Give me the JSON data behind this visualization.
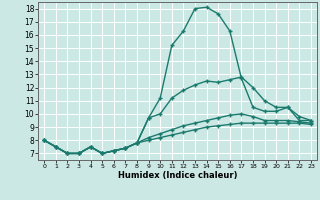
{
  "xlabel": "Humidex (Indice chaleur)",
  "xlim": [
    -0.5,
    23.5
  ],
  "ylim": [
    6.5,
    18.5
  ],
  "xticks": [
    0,
    1,
    2,
    3,
    4,
    5,
    6,
    7,
    8,
    9,
    10,
    11,
    12,
    13,
    14,
    15,
    16,
    17,
    18,
    19,
    20,
    21,
    22,
    23
  ],
  "yticks": [
    7,
    8,
    9,
    10,
    11,
    12,
    13,
    14,
    15,
    16,
    17,
    18
  ],
  "background_color": "#cce8e4",
  "grid_color": "#ffffff",
  "line_color": "#1a7a6e",
  "line_width": 1.0,
  "marker": "+",
  "marker_size": 3.5,
  "marker_lw": 1.0,
  "curves": [
    {
      "x": [
        0,
        1,
        2,
        3,
        4,
        5,
        6,
        7,
        8,
        9,
        10,
        11,
        12,
        13,
        14,
        15,
        16,
        17,
        18,
        19,
        20,
        21,
        22,
        23
      ],
      "y": [
        8.0,
        7.5,
        7.0,
        7.0,
        7.5,
        7.0,
        7.2,
        7.4,
        7.8,
        9.7,
        11.2,
        15.2,
        16.3,
        18.0,
        18.1,
        17.6,
        16.3,
        12.7,
        10.5,
        10.2,
        10.2,
        10.5,
        9.5,
        9.5
      ]
    },
    {
      "x": [
        0,
        1,
        2,
        3,
        4,
        5,
        6,
        7,
        8,
        9,
        10,
        11,
        12,
        13,
        14,
        15,
        16,
        17,
        18,
        19,
        20,
        21,
        22,
        23
      ],
      "y": [
        8.0,
        7.5,
        7.0,
        7.0,
        7.5,
        7.0,
        7.2,
        7.4,
        7.8,
        9.7,
        10.0,
        11.2,
        11.8,
        12.2,
        12.5,
        12.4,
        12.6,
        12.8,
        12.0,
        11.0,
        10.5,
        10.5,
        9.8,
        9.5
      ]
    },
    {
      "x": [
        0,
        1,
        2,
        3,
        4,
        5,
        6,
        7,
        8,
        9,
        10,
        11,
        12,
        13,
        14,
        15,
        16,
        17,
        18,
        19,
        20,
        21,
        22,
        23
      ],
      "y": [
        8.0,
        7.5,
        7.0,
        7.0,
        7.5,
        7.0,
        7.2,
        7.4,
        7.8,
        8.2,
        8.5,
        8.8,
        9.1,
        9.3,
        9.5,
        9.7,
        9.9,
        10.0,
        9.8,
        9.5,
        9.5,
        9.5,
        9.4,
        9.3
      ]
    },
    {
      "x": [
        0,
        1,
        2,
        3,
        4,
        5,
        6,
        7,
        8,
        9,
        10,
        11,
        12,
        13,
        14,
        15,
        16,
        17,
        18,
        19,
        20,
        21,
        22,
        23
      ],
      "y": [
        8.0,
        7.5,
        7.0,
        7.0,
        7.5,
        7.0,
        7.2,
        7.4,
        7.8,
        8.0,
        8.2,
        8.4,
        8.6,
        8.8,
        9.0,
        9.1,
        9.2,
        9.3,
        9.3,
        9.3,
        9.3,
        9.3,
        9.3,
        9.2
      ]
    }
  ]
}
